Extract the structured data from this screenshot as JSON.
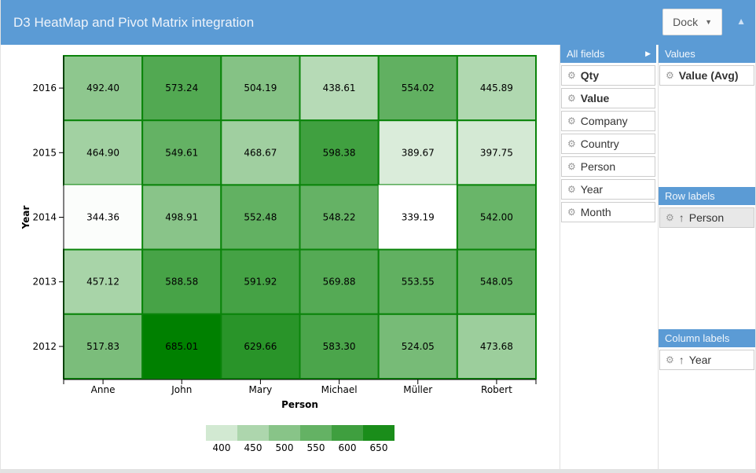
{
  "header": {
    "title": "D3 HeatMap and Pivot Matrix integration",
    "dock_label": "Dock"
  },
  "panel": {
    "all_fields": {
      "title": "All fields",
      "items": [
        {
          "label": "Qty",
          "bold": true
        },
        {
          "label": "Value",
          "bold": true
        },
        {
          "label": "Company",
          "bold": false
        },
        {
          "label": "Country",
          "bold": false
        },
        {
          "label": "Person",
          "bold": false
        },
        {
          "label": "Year",
          "bold": false
        },
        {
          "label": "Month",
          "bold": false
        }
      ]
    },
    "values": {
      "title": "Values",
      "items": [
        {
          "label": "Value (Avg)",
          "bold": true,
          "sort": false,
          "highlight": false
        }
      ]
    },
    "row_labels": {
      "title": "Row labels",
      "items": [
        {
          "label": "Person",
          "bold": false,
          "sort": true,
          "highlight": true
        }
      ]
    },
    "column_labels": {
      "title": "Column labels",
      "items": [
        {
          "label": "Year",
          "bold": false,
          "sort": true,
          "highlight": false
        }
      ]
    }
  },
  "chart_data": {
    "type": "heatmap",
    "x_categories": [
      "Anne",
      "John",
      "Mary",
      "Michael",
      "Müller",
      "Robert"
    ],
    "y_categories": [
      "2016",
      "2015",
      "2014",
      "2013",
      "2012"
    ],
    "xlabel": "Person",
    "ylabel": "Year",
    "values": [
      [
        492.4,
        573.24,
        504.19,
        438.61,
        554.02,
        445.89
      ],
      [
        464.9,
        549.61,
        468.67,
        598.38,
        389.67,
        397.75
      ],
      [
        344.36,
        498.91,
        552.48,
        548.22,
        339.19,
        542.0
      ],
      [
        457.12,
        588.58,
        591.92,
        569.88,
        553.55,
        548.05
      ],
      [
        517.83,
        685.01,
        629.66,
        583.3,
        524.05,
        473.68
      ]
    ],
    "legend_ticks": [
      400,
      450,
      500,
      550,
      600,
      650
    ],
    "color_domain": [
      339.19,
      685.01
    ],
    "color_range": [
      "#ffffff",
      "#008000"
    ],
    "legend_position": "bottom"
  },
  "colors": {
    "accent": "#5b9bd5",
    "cell_border": "#0a840a",
    "axis": "#000000",
    "panel_divider": "#e0e0e0",
    "item_border": "#cccccc",
    "highlight_bg": "#e8e8e8"
  }
}
